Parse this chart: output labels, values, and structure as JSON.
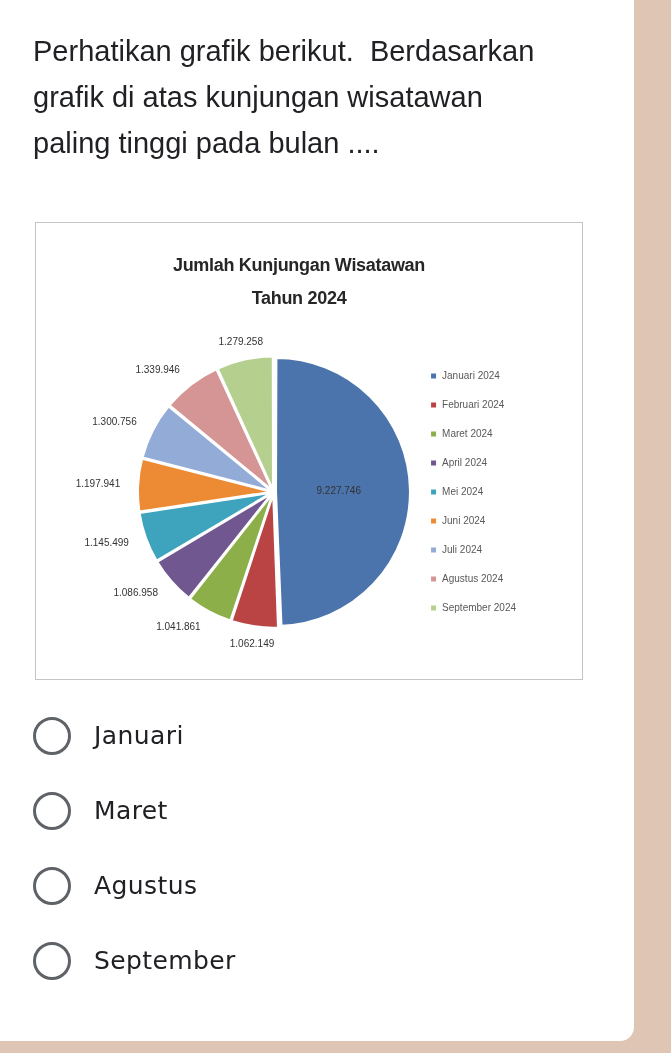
{
  "chart_data": {
    "type": "pie",
    "title": "Jumlah Kunjungan Wisatawan Tahun 2024",
    "categories": [
      "Januari 2024",
      "Februari 2024",
      "Maret 2024",
      "April 2024",
      "Mei 2024",
      "Juni 2024",
      "Juli 2024",
      "Agustus 2024",
      "September 2024"
    ],
    "values": [
      9227746,
      1062149,
      1041861,
      1086958,
      1145499,
      1197941,
      1300756,
      1339946,
      1279258
    ],
    "colors": [
      "#4a74ab",
      "#b94443",
      "#8caf4a",
      "#71578f",
      "#3ea3bd",
      "#ec8b34",
      "#93abd7",
      "#d69595",
      "#b5cf8f"
    ],
    "value_labels": [
      "9.227.746",
      "1.062.149",
      "1.041.861",
      "1.086.958",
      "1.145.499",
      "1.197.941",
      "1.300.756",
      "1.339.946",
      "1.279.258"
    ],
    "legend": "right",
    "annotations": [
      "Perhatikan grafik berikut.  Berdasarkan grafik di atas kunjungan wisatawan paling tinggi pada bulan ....",
      "Januari",
      "Maret",
      "Agustus",
      "September"
    ]
  }
}
